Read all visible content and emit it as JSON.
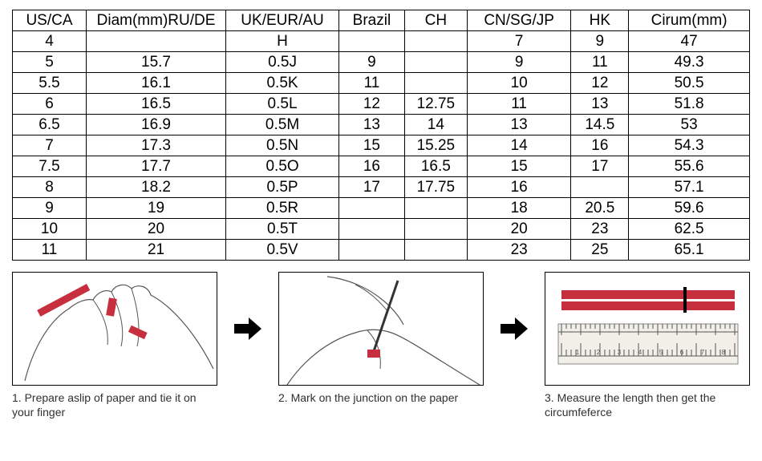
{
  "table": {
    "columns": [
      "US/CA",
      "Diam(mm)RU/DE",
      "UK/EUR/AU",
      "Brazil",
      "CH",
      "CN/SG/JP",
      "HK",
      "Cirum(mm)"
    ],
    "column_classes": [
      "col-usca",
      "col-diam",
      "col-uk",
      "col-brazil",
      "col-ch",
      "col-cn",
      "col-hk",
      "col-circ"
    ],
    "rows": [
      [
        "4",
        "",
        "H",
        "",
        "",
        "7",
        "9",
        "47"
      ],
      [
        "5",
        "15.7",
        "0.5J",
        "9",
        "",
        "9",
        "11",
        "49.3"
      ],
      [
        "5.5",
        "16.1",
        "0.5K",
        "11",
        "",
        "10",
        "12",
        "50.5"
      ],
      [
        "6",
        "16.5",
        "0.5L",
        "12",
        "12.75",
        "11",
        "13",
        "51.8"
      ],
      [
        "6.5",
        "16.9",
        "0.5M",
        "13",
        "14",
        "13",
        "14.5",
        "53"
      ],
      [
        "7",
        "17.3",
        "0.5N",
        "15",
        "15.25",
        "14",
        "16",
        "54.3"
      ],
      [
        "7.5",
        "17.7",
        "0.5O",
        "16",
        "16.5",
        "15",
        "17",
        "55.6"
      ],
      [
        "8",
        "18.2",
        "0.5P",
        "17",
        "17.75",
        "16",
        "",
        "57.1"
      ],
      [
        "9",
        "19",
        "0.5R",
        "",
        "",
        "18",
        "20.5",
        "59.6"
      ],
      [
        "10",
        "20",
        "0.5T",
        "",
        "",
        "20",
        "23",
        "62.5"
      ],
      [
        "11",
        "21",
        "0.5V",
        "",
        "",
        "23",
        "25",
        "65.1"
      ]
    ],
    "border_color": "#000000",
    "font_size": 19,
    "text_align": "center"
  },
  "steps": {
    "arrow_color": "#000000",
    "accent_color": "#c82f3e",
    "items": [
      {
        "caption": "1. Prepare aslip of paper and tie it on your finger"
      },
      {
        "caption": "2. Mark on the junction on the paper"
      },
      {
        "caption": "3. Measure the length then get the circumfeferce"
      }
    ]
  }
}
